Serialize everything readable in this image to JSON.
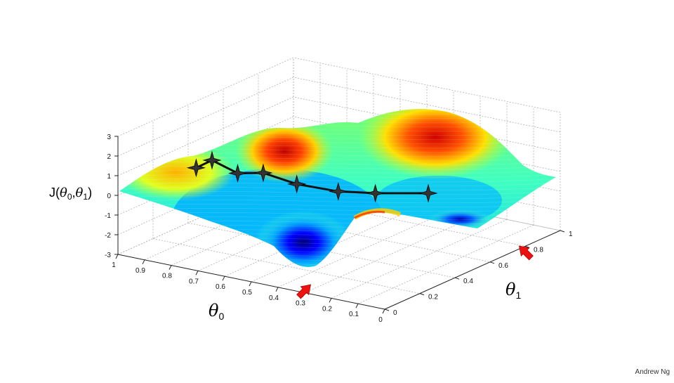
{
  "chart_data": {
    "type": "surface",
    "title": "",
    "zlabel": {
      "prefix": "J(",
      "theta": "θ",
      "sub0": "0",
      "comma": ",",
      "sub1": "1",
      "suffix": ")"
    },
    "xlabel": {
      "symbol": "θ",
      "sub": "0"
    },
    "ylabel": {
      "symbol": "θ",
      "sub": "1"
    },
    "theta0_ticks": [
      "1",
      "0.9",
      "0.8",
      "0.7",
      "0.6",
      "0.5",
      "0.4",
      "0.3",
      "0.2",
      "0.1",
      "0"
    ],
    "theta1_ticks": [
      "0",
      "0.2",
      "0.4",
      "0.6",
      "0.8",
      "1"
    ],
    "z_ticks": [
      "3",
      "2",
      "1",
      "0",
      "-1",
      "-2",
      "-3"
    ],
    "theta0_range": [
      0,
      1
    ],
    "theta1_range": [
      0,
      1
    ],
    "z_range": [
      -3,
      3
    ],
    "grid": true,
    "colormap": "jet",
    "descent_path": {
      "theta0": [
        0.72,
        0.7,
        0.65,
        0.62,
        0.56,
        0.49,
        0.43,
        0.35
      ],
      "theta1": [
        0.02,
        0.08,
        0.15,
        0.25,
        0.35,
        0.48,
        0.6,
        0.78
      ],
      "J": [
        2.1,
        2.3,
        1.5,
        1.2,
        0.4,
        -0.3,
        -0.7,
        -1.2
      ]
    },
    "local_minima_arrows": [
      {
        "theta0": 0.3,
        "theta1": 0.05
      },
      {
        "theta0": 0.0,
        "theta1": 0.75
      }
    ]
  },
  "footer": {
    "credit": "Andrew Ng"
  }
}
